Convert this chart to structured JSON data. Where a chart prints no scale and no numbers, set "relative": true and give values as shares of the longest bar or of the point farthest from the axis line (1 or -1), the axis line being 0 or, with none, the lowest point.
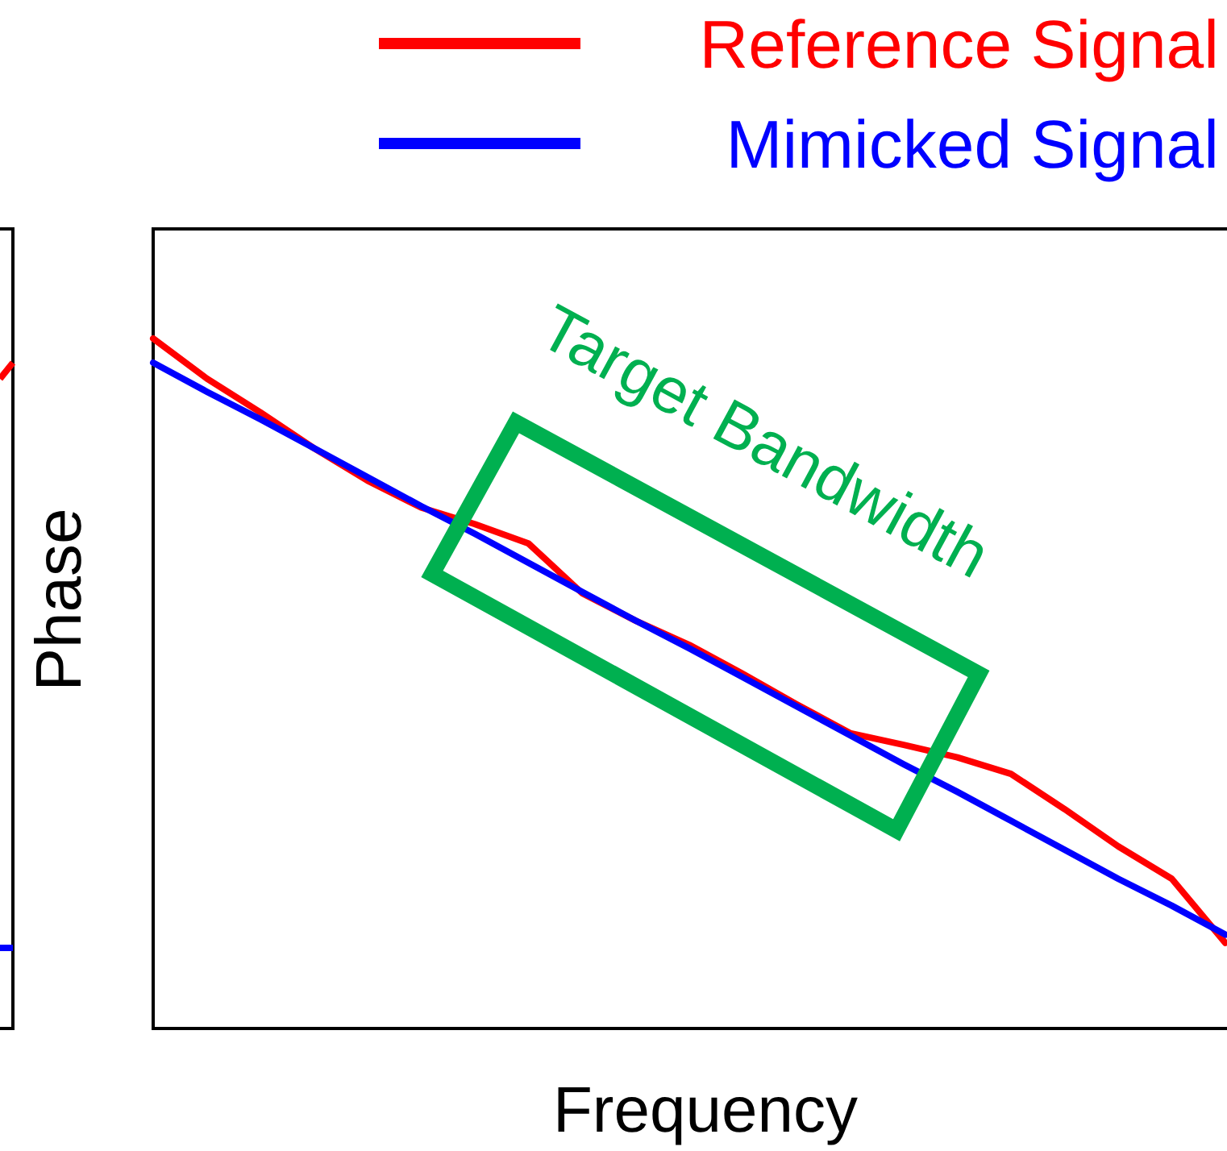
{
  "chart_data": {
    "type": "line",
    "relative": true,
    "xlabel": "Frequency",
    "ylabel": "Phase",
    "annotations": [
      "Target Bandwidth"
    ],
    "legend": "top right",
    "categories": [
      null,
      null,
      null,
      null,
      null,
      null,
      null,
      null,
      null,
      null,
      null,
      null,
      null,
      null,
      null,
      null,
      null,
      null,
      null,
      null,
      null
    ],
    "series": [
      {
        "name": "Reference Signal",
        "color": "#ff0000",
        "values": [
          1,
          0.942,
          0.893,
          0.841,
          0.794,
          0.755,
          0.731,
          0.703,
          0.631,
          0.591,
          0.556,
          0.514,
          0.47,
          0.428,
          0.411,
          0.393,
          0.369,
          0.318,
          0.264,
          0.217,
          0.124
        ]
      },
      {
        "name": "Mimicked Signal",
        "color": "#0000ff",
        "values": [
          0.965,
          0.923,
          0.883,
          0.841,
          0.799,
          0.757,
          0.717,
          0.675,
          0.633,
          0.591,
          0.551,
          0.509,
          0.467,
          0.425,
          0.383,
          0.343,
          0.301,
          0.259,
          0.217,
          0.178,
          0.136
        ]
      }
    ]
  }
}
